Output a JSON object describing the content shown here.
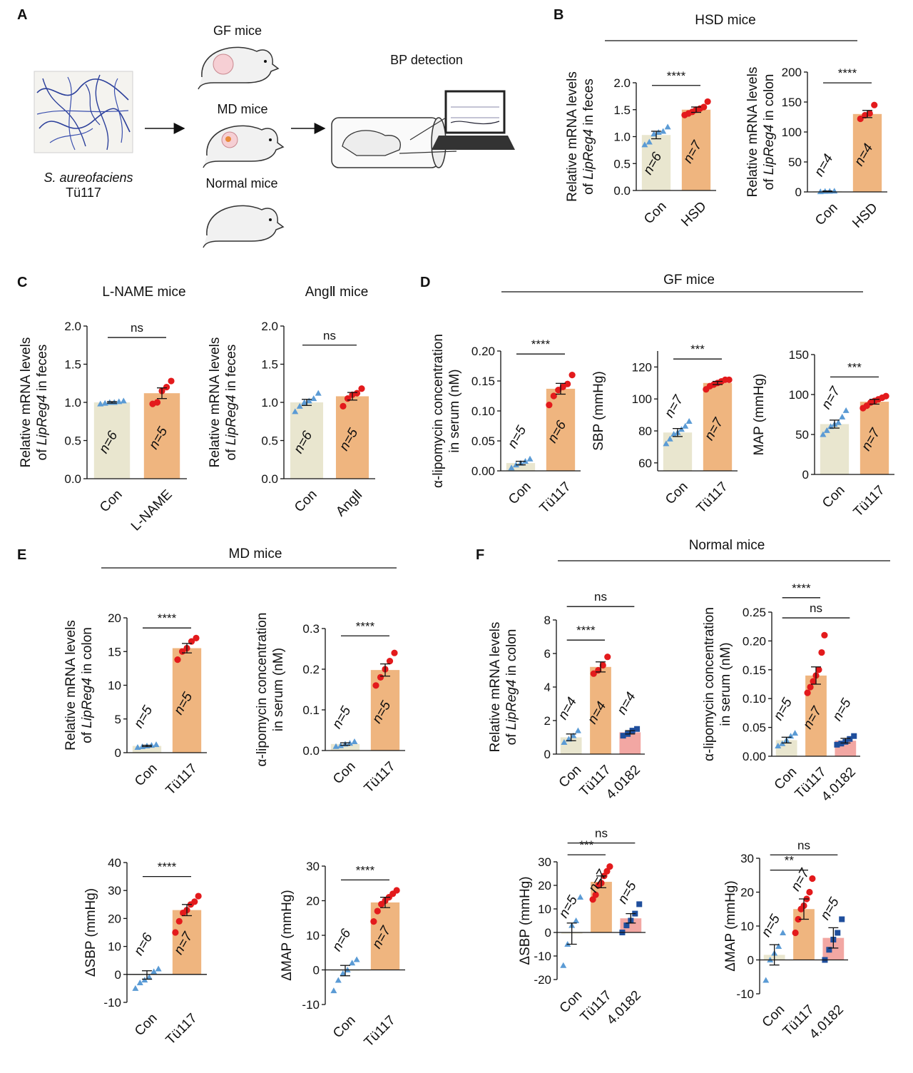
{
  "colors": {
    "con_bar": "#e9e6cf",
    "tu_bar": "#efb57f",
    "pink_bar": "#f2a7a3",
    "con_dot": "#5b9bd5",
    "tu_dot": "#e31a1c",
    "blue_dot": "#1f4e9c"
  },
  "panel_a": {
    "label": "A",
    "strain": "S. aureofaciens",
    "strain_code": "Tü117",
    "gf": "GF mice",
    "md": "MD mice",
    "normal": "Normal mice",
    "bp": "BP detection"
  },
  "panel_b": {
    "label": "B",
    "group_title": "HSD mice"
  },
  "panel_c": {
    "label": "C"
  },
  "panel_d": {
    "label": "D",
    "group_title": "GF mice"
  },
  "panel_e": {
    "label": "E",
    "group_title": "MD mice"
  },
  "panel_f": {
    "label": "F",
    "group_title": "Normal mice"
  },
  "chart_data": [
    {
      "id": "B1",
      "type": "bar",
      "ylabel": [
        "Relative mRNA levels",
        "of |LipReg4| in feces"
      ],
      "ylim": [
        0,
        2.0
      ],
      "ticks": [
        0.0,
        0.5,
        1.0,
        1.5,
        2.0
      ],
      "ticklabels": [
        "0.0",
        "0.5",
        "1.0",
        "1.5",
        "2.0"
      ],
      "categories": [
        "Con",
        "HSD"
      ],
      "values": [
        1.03,
        1.5
      ],
      "sem": [
        0.07,
        0.05
      ],
      "n": [
        "n=6",
        "n=7"
      ],
      "points": [
        [
          0.85,
          0.9,
          1.05,
          1.08,
          1.1,
          1.18
        ],
        [
          1.4,
          1.43,
          1.46,
          1.5,
          1.52,
          1.55,
          1.65
        ]
      ],
      "sig": [
        {
          "a": 0,
          "b": 1,
          "y": 1.95,
          "label": "****"
        }
      ]
    },
    {
      "id": "B2",
      "type": "bar",
      "ylabel": [
        "Relative mRNA levels",
        "of |LipReg4| in colon"
      ],
      "ylim": [
        0,
        200
      ],
      "ticks": [
        0,
        50,
        100,
        150,
        200
      ],
      "ticklabels": [
        "0",
        "50",
        "100",
        "150",
        "200"
      ],
      "categories": [
        "Con",
        "HSD"
      ],
      "values": [
        1,
        130
      ],
      "sem": [
        0.5,
        6
      ],
      "n": [
        "n=4",
        "n=4"
      ],
      "points": [
        [
          0.5,
          1,
          1.2,
          1.5
        ],
        [
          122,
          128,
          131,
          145
        ]
      ],
      "sig": [
        {
          "a": 0,
          "b": 1,
          "y": 182,
          "label": "****"
        }
      ]
    },
    {
      "id": "C1",
      "type": "bar",
      "title": "L-NAME mice",
      "ylabel": [
        "Relative mRNA levels",
        "of |LipReg4| in feces"
      ],
      "ylim": [
        0,
        2.0
      ],
      "ticks": [
        0.0,
        0.5,
        1.0,
        1.5,
        2.0
      ],
      "ticklabels": [
        "0.0",
        "0.5",
        "1.0",
        "1.5",
        "2.0"
      ],
      "categories": [
        "Con",
        "L-NAME"
      ],
      "values": [
        1.0,
        1.12
      ],
      "sem": [
        0.01,
        0.07
      ],
      "n": [
        "n=6",
        "n=5"
      ],
      "points": [
        [
          0.98,
          0.99,
          1.0,
          1.0,
          1.01,
          1.02
        ],
        [
          0.98,
          1.0,
          1.15,
          1.2,
          1.28
        ]
      ],
      "sig": [
        {
          "a": 0,
          "b": 1,
          "y": 1.85,
          "label": "ns"
        }
      ]
    },
    {
      "id": "C2",
      "type": "bar",
      "title": "AngⅡ mice",
      "ylabel": [
        "Relative mRNA levels",
        "of |LipReg4| in feces"
      ],
      "ylim": [
        0,
        2.0
      ],
      "ticks": [
        0.0,
        0.5,
        1.0,
        1.5,
        2.0
      ],
      "ticklabels": [
        "0.0",
        "0.5",
        "1.0",
        "1.5",
        "2.0"
      ],
      "categories": [
        "Con",
        "AngⅡ"
      ],
      "values": [
        1.0,
        1.08
      ],
      "sem": [
        0.04,
        0.05
      ],
      "n": [
        "n=6",
        "n=5"
      ],
      "points": [
        [
          0.88,
          0.95,
          1.0,
          1.02,
          1.05,
          1.12
        ],
        [
          0.95,
          1.05,
          1.1,
          1.12,
          1.18
        ]
      ],
      "sig": [
        {
          "a": 0,
          "b": 1,
          "y": 1.75,
          "label": "ns"
        }
      ]
    },
    {
      "id": "D1",
      "type": "bar",
      "ylabel": [
        "α-lipomycin concentration",
        "in serum (nM)"
      ],
      "ylim": [
        0,
        0.2
      ],
      "ticks": [
        0.0,
        0.05,
        0.1,
        0.15,
        0.2
      ],
      "ticklabels": [
        "0.00",
        "0.05",
        "0.10",
        "0.15",
        "0.20"
      ],
      "categories": [
        "Con",
        "Tü117"
      ],
      "values": [
        0.013,
        0.137
      ],
      "sem": [
        0.003,
        0.009
      ],
      "n": [
        "n=5",
        "n=6"
      ],
      "points": [
        [
          0.005,
          0.01,
          0.013,
          0.016,
          0.02
        ],
        [
          0.11,
          0.125,
          0.135,
          0.14,
          0.145,
          0.16
        ]
      ],
      "sig": [
        {
          "a": 0,
          "b": 1,
          "y": 0.195,
          "label": "****"
        }
      ]
    },
    {
      "id": "D2",
      "type": "bar",
      "ylabel": [
        "SBP (mmHg)"
      ],
      "ylim": [
        55,
        130
      ],
      "base": 55,
      "ticks": [
        60,
        80,
        100,
        120
      ],
      "ticklabels": [
        "60",
        "80",
        "100",
        "120"
      ],
      "categories": [
        "Con",
        "Tü117"
      ],
      "values": [
        79,
        110
      ],
      "sem": [
        2.5,
        1
      ],
      "n": [
        "n=7",
        "n=7"
      ],
      "points": [
        [
          72,
          75,
          78,
          79,
          81,
          83,
          86
        ],
        [
          106,
          108,
          109,
          110,
          111,
          112,
          112
        ]
      ],
      "sig": [
        {
          "a": 0,
          "b": 1,
          "y": 125,
          "label": "***"
        }
      ]
    },
    {
      "id": "D3",
      "type": "bar",
      "ylabel": [
        "MAP (mmHg)"
      ],
      "ylim": [
        0,
        150
      ],
      "ticks": [
        0,
        50,
        100,
        150
      ],
      "ticklabels": [
        "0",
        "50",
        "100",
        "150"
      ],
      "categories": [
        "Con",
        "Tü117"
      ],
      "values": [
        63,
        91
      ],
      "sem": [
        5,
        3
      ],
      "n": [
        "n=7",
        "n=7"
      ],
      "points": [
        [
          50,
          55,
          60,
          63,
          65,
          72,
          80
        ],
        [
          83,
          86,
          90,
          92,
          94,
          96,
          98
        ]
      ],
      "sig": [
        {
          "a": 0,
          "b": 1,
          "y": 122,
          "label": "***"
        }
      ]
    },
    {
      "id": "E1",
      "type": "bar",
      "ylabel": [
        "Relative mRNA levels",
        "of |LipReg4| in colon"
      ],
      "ylim": [
        0,
        20
      ],
      "ticks": [
        0,
        5,
        10,
        15,
        20
      ],
      "ticklabels": [
        "0",
        "5",
        "10",
        "15",
        "20"
      ],
      "categories": [
        "Con",
        "Tü117"
      ],
      "values": [
        1.0,
        15.5
      ],
      "sem": [
        0.1,
        0.7
      ],
      "n": [
        "n=5",
        "n=5"
      ],
      "points": [
        [
          0.8,
          0.9,
          1.0,
          1.1,
          1.2
        ],
        [
          13.8,
          15.0,
          15.5,
          16.5,
          17.0
        ]
      ],
      "sig": [
        {
          "a": 0,
          "b": 1,
          "y": 18.5,
          "label": "****"
        }
      ]
    },
    {
      "id": "E2",
      "type": "bar",
      "ylabel": [
        "α-lipomycin concentration",
        "in serum (nM)"
      ],
      "ylim": [
        0,
        0.3
      ],
      "ticks": [
        0.0,
        0.1,
        0.2,
        0.3
      ],
      "ticklabels": [
        "0.0",
        "0.1",
        "0.2",
        "0.3"
      ],
      "categories": [
        "Con",
        "Tü117"
      ],
      "values": [
        0.016,
        0.198
      ],
      "sem": [
        0.003,
        0.015
      ],
      "n": [
        "n=5",
        "n=5"
      ],
      "points": [
        [
          0.01,
          0.012,
          0.016,
          0.018,
          0.022
        ],
        [
          0.16,
          0.18,
          0.2,
          0.22,
          0.24
        ]
      ],
      "sig": [
        {
          "a": 0,
          "b": 1,
          "y": 0.282,
          "label": "****"
        }
      ]
    },
    {
      "id": "E3",
      "type": "bar",
      "ylabel": [
        "ΔSBP (mmHg)"
      ],
      "ylim": [
        -10,
        40
      ],
      "ticks": [
        -10,
        0,
        10,
        20,
        30,
        40
      ],
      "ticklabels": [
        "-10",
        "0",
        "10",
        "20",
        "30",
        "40"
      ],
      "categories": [
        "Con",
        "Tü117"
      ],
      "values": [
        -0.2,
        23
      ],
      "sem": [
        1.5,
        2
      ],
      "n": [
        "n=6",
        "n=7"
      ],
      "points": [
        [
          -5,
          -3,
          -2,
          -1,
          1,
          2
        ],
        [
          15,
          19,
          22,
          23,
          25,
          26,
          28
        ]
      ],
      "sig": [
        {
          "a": 0,
          "b": 1,
          "y": 35,
          "label": "****"
        }
      ]
    },
    {
      "id": "E4",
      "type": "bar",
      "ylabel": [
        "ΔMAP (mmHg)"
      ],
      "ylim": [
        -10,
        30
      ],
      "ticks": [
        -10,
        0,
        10,
        20,
        30
      ],
      "ticklabels": [
        "-10",
        "0",
        "10",
        "20",
        "30"
      ],
      "categories": [
        "Con",
        "Tü117"
      ],
      "values": [
        -0.2,
        19.5
      ],
      "sem": [
        1.5,
        1.5
      ],
      "n": [
        "n=6",
        "n=7"
      ],
      "points": [
        [
          -6,
          -3,
          -1,
          0,
          2,
          3
        ],
        [
          14,
          17,
          19,
          20,
          21,
          22,
          23
        ]
      ],
      "sig": [
        {
          "a": 0,
          "b": 1,
          "y": 26,
          "label": "****"
        }
      ]
    },
    {
      "id": "F1",
      "type": "bar",
      "ylabel": [
        "Relative mRNA levels",
        "of |LipReg4| in colon"
      ],
      "ylim": [
        0,
        8
      ],
      "ticks": [
        0,
        2,
        4,
        6,
        8
      ],
      "ticklabels": [
        "0",
        "2",
        "4",
        "6",
        "8"
      ],
      "categories": [
        "Con",
        "Tü117",
        "4.0182"
      ],
      "values": [
        1.0,
        5.2,
        1.3
      ],
      "sem": [
        0.2,
        0.3,
        0.1
      ],
      "n": [
        "n=4",
        "n=4",
        "n=4"
      ],
      "points": [
        [
          0.7,
          0.9,
          1.1,
          1.4
        ],
        [
          4.8,
          5.0,
          5.3,
          5.8
        ],
        [
          1.1,
          1.2,
          1.4,
          1.5
        ]
      ],
      "sig": [
        {
          "a": 0,
          "b": 1,
          "y": 6.8,
          "label": "****"
        },
        {
          "a": 0,
          "b": 2,
          "y": 8.8,
          "label": "ns"
        }
      ]
    },
    {
      "id": "F2",
      "type": "bar",
      "ylabel": [
        "α-lipomycin concentration",
        "in serum (nM)"
      ],
      "ylim": [
        0,
        0.25
      ],
      "ticks": [
        0.0,
        0.05,
        0.1,
        0.15,
        0.2,
        0.25
      ],
      "ticklabels": [
        "0.00",
        "0.05",
        "0.10",
        "0.15",
        "0.20",
        "0.25"
      ],
      "categories": [
        "Con",
        "Tü117",
        "4.0182"
      ],
      "values": [
        0.028,
        0.14,
        0.027
      ],
      "sem": [
        0.005,
        0.015,
        0.004
      ],
      "n": [
        "n=5",
        "n=7",
        "n=5"
      ],
      "points": [
        [
          0.018,
          0.022,
          0.028,
          0.035,
          0.04
        ],
        [
          0.11,
          0.12,
          0.13,
          0.14,
          0.15,
          0.18,
          0.21
        ],
        [
          0.02,
          0.022,
          0.025,
          0.03,
          0.035
        ]
      ],
      "sig": [
        {
          "a": 0,
          "b": 1,
          "y": 0.275,
          "label": "****"
        },
        {
          "a": 0,
          "b": 2,
          "y": 0.24,
          "label": "ns"
        }
      ]
    },
    {
      "id": "F3",
      "type": "bar",
      "ylabel": [
        "ΔSBP (mmHg)"
      ],
      "ylim": [
        -20,
        30
      ],
      "ticks": [
        -20,
        -10,
        0,
        10,
        20,
        30
      ],
      "ticklabels": [
        "-20",
        "-10",
        "0",
        "10",
        "20",
        "30"
      ],
      "categories": [
        "Con",
        "Tü117",
        "4.0182"
      ],
      "values": [
        -0.5,
        21.5,
        6
      ],
      "sem": [
        4.5,
        2.5,
        2
      ],
      "n": [
        "n=5",
        "n=7",
        "n=5"
      ],
      "points": [
        [
          -14,
          -5,
          3,
          5,
          15
        ],
        [
          14,
          16,
          20,
          21,
          24,
          26,
          28
        ],
        [
          0,
          3,
          5,
          8,
          12
        ]
      ],
      "sig": [
        {
          "a": 0,
          "b": 1,
          "y": 33,
          "label": "***"
        },
        {
          "a": 0,
          "b": 2,
          "y": 38,
          "label": "ns"
        }
      ]
    },
    {
      "id": "F4",
      "type": "bar",
      "ylabel": [
        "ΔMAP (mmHg)"
      ],
      "ylim": [
        -10,
        30
      ],
      "ticks": [
        -10,
        0,
        10,
        20,
        30
      ],
      "ticklabels": [
        "-10",
        "0",
        "10",
        "20",
        "30"
      ],
      "categories": [
        "Con",
        "Tü117",
        "4.0182"
      ],
      "values": [
        1.5,
        15,
        6.5
      ],
      "sem": [
        3,
        3,
        3
      ],
      "n": [
        "n=5",
        "n=7",
        "n=5"
      ],
      "points": [
        [
          -6,
          0,
          2,
          4,
          8
        ],
        [
          8,
          12,
          15,
          16,
          18,
          20,
          24
        ],
        [
          0,
          3,
          6,
          8,
          12
        ]
      ],
      "sig": [
        {
          "a": 0,
          "b": 1,
          "y": 26.5,
          "label": "**"
        },
        {
          "a": 0,
          "b": 2,
          "y": 31,
          "label": "ns"
        }
      ]
    }
  ]
}
